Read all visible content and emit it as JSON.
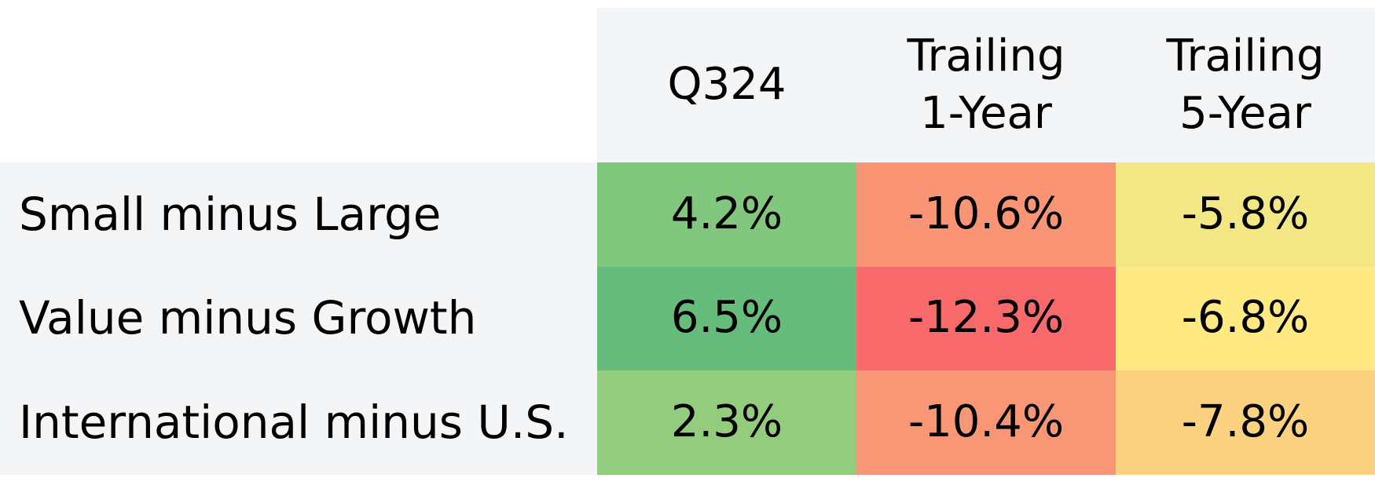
{
  "table": {
    "columns": [
      "Q324",
      "Trailing 1-Year",
      "Trailing 5-Year"
    ],
    "rows": [
      {
        "label": "Small minus Large",
        "cells": [
          {
            "text": "4.2%",
            "color": "#81c77e"
          },
          {
            "text": "-10.6%",
            "color": "#f99474"
          },
          {
            "text": "-5.8%",
            "color": "#f2e784"
          }
        ]
      },
      {
        "label": "Value minus Growth",
        "cells": [
          {
            "text": "6.5%",
            "color": "#66bd7b"
          },
          {
            "text": "-12.3%",
            "color": "#f8696b"
          },
          {
            "text": "-6.8%",
            "color": "#fee983"
          }
        ]
      },
      {
        "label": "International minus U.S.",
        "cells": [
          {
            "text": "2.3%",
            "color": "#94cc7d"
          },
          {
            "text": "-10.4%",
            "color": "#f99675"
          },
          {
            "text": "-7.8%",
            "color": "#fcd17f"
          }
        ]
      }
    ]
  }
}
